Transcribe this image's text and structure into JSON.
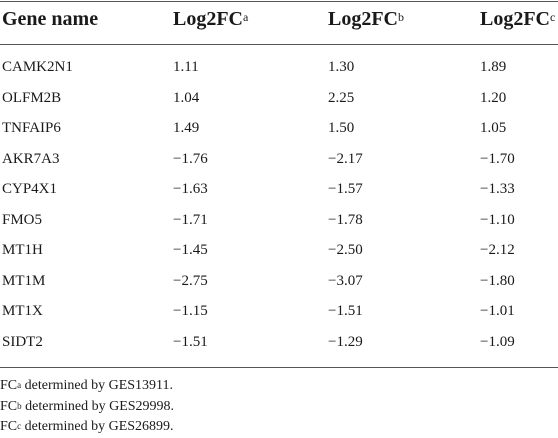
{
  "table": {
    "headers": [
      {
        "text": "Gene name",
        "sup": ""
      },
      {
        "text": "Log2FC",
        "sup": "a"
      },
      {
        "text": "Log2FC",
        "sup": "b"
      },
      {
        "text": "Log2FC",
        "sup": "c"
      }
    ],
    "rows": [
      [
        "CAMK2N1",
        "1.11",
        "1.30",
        "1.89"
      ],
      [
        "OLFM2B",
        "1.04",
        "2.25",
        "1.20"
      ],
      [
        "TNFAIP6",
        "1.49",
        "1.50",
        "1.05"
      ],
      [
        "AKR7A3",
        "−1.76",
        "−2.17",
        "−1.70"
      ],
      [
        "CYP4X1",
        "−1.63",
        "−1.57",
        "−1.33"
      ],
      [
        "FMO5",
        "−1.71",
        "−1.78",
        "−1.10"
      ],
      [
        "MT1H",
        "−1.45",
        "−2.50",
        "−2.12"
      ],
      [
        "MT1M",
        "−2.75",
        "−3.07",
        "−1.80"
      ],
      [
        "MT1X",
        "−1.15",
        "−1.51",
        "−1.01"
      ],
      [
        "SIDT2",
        "−1.51",
        "−1.29",
        "−1.09"
      ]
    ]
  },
  "footnotes": [
    {
      "prefix": "FC",
      "sup": "a",
      "text": " determined by GES13911."
    },
    {
      "prefix": "FC",
      "sup": "b",
      "text": " determined by GES29998."
    },
    {
      "prefix": "FC",
      "sup": "c",
      "text": " determined by GES26899."
    }
  ]
}
